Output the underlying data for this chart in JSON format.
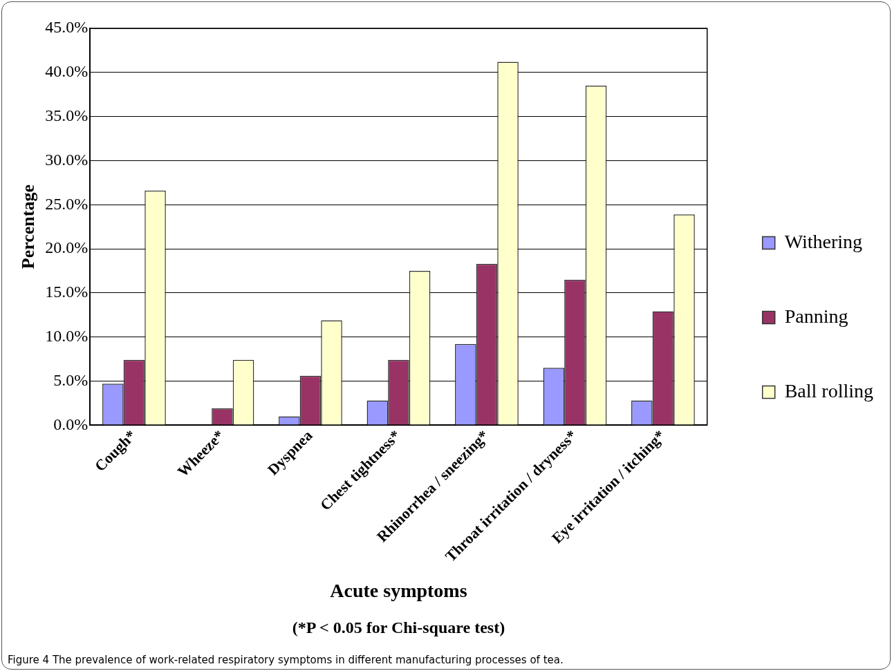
{
  "chart_data": {
    "type": "bar",
    "xlabel": "Acute symptoms",
    "ylabel": "Percentage",
    "categories": [
      "Cough*",
      "Wheeze*",
      "Dyspnea",
      "Chest tightness*",
      "Rhinorrhea / sneezing*",
      "Throat irritation / dryness*",
      "Eye irritation / itching*"
    ],
    "series": [
      {
        "name": "Withering",
        "color": "#9999ff",
        "values": [
          4.7,
          0,
          1.0,
          2.8,
          9.2,
          6.5,
          2.8
        ]
      },
      {
        "name": "Panning",
        "color": "#993366",
        "values": [
          7.4,
          1.9,
          5.6,
          7.4,
          18.3,
          16.5,
          12.9
        ]
      },
      {
        "name": "Ball rolling",
        "color": "#ffffcc",
        "values": [
          26.6,
          7.4,
          11.9,
          17.5,
          41.2,
          38.5,
          23.9
        ]
      }
    ],
    "ylim": [
      0,
      45
    ],
    "yticks": [
      {
        "value": 0,
        "label": "0.0%"
      },
      {
        "value": 5,
        "label": "5.0%"
      },
      {
        "value": 10,
        "label": "10.0%"
      },
      {
        "value": 15,
        "label": "15.0%"
      },
      {
        "value": 20,
        "label": "20.0%"
      },
      {
        "value": 25,
        "label": "25.0%"
      },
      {
        "value": 30,
        "label": "30.0%"
      },
      {
        "value": 35,
        "label": "35.0%"
      },
      {
        "value": 40,
        "label": "40.0%"
      },
      {
        "value": 45,
        "label": "45.0%"
      }
    ],
    "grid": "y",
    "legend": "right",
    "annotations": [
      "(*P < 0.05 for Chi-square test)",
      "Figure 4 The prevalence of work-related respiratory symptoms in different manufacturing processes of tea."
    ]
  }
}
